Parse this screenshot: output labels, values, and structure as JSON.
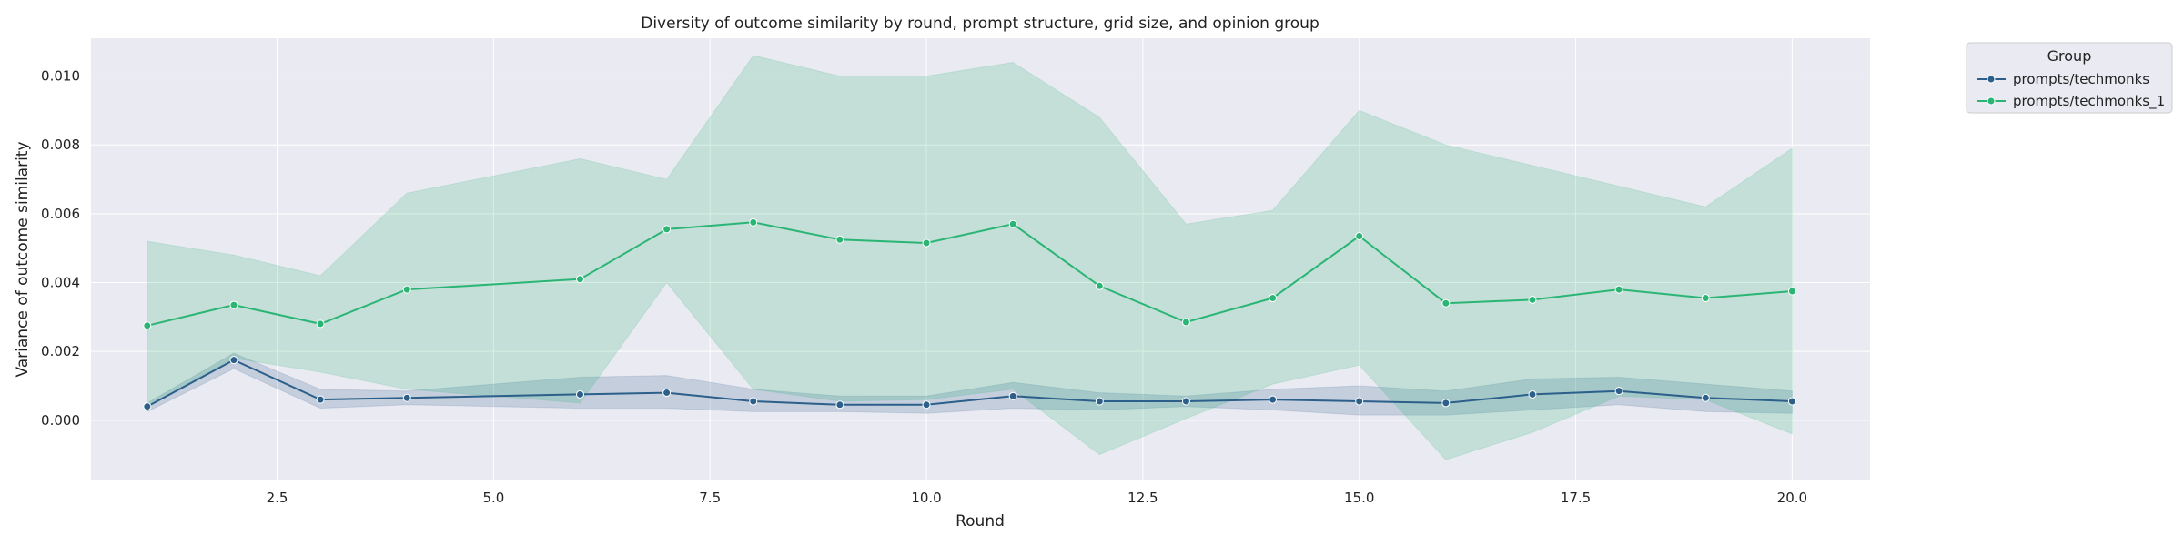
{
  "chart_data": {
    "type": "line",
    "title": "Diversity of outcome similarity by round, prompt structure, grid size, and opinion group",
    "xlabel": "Round",
    "ylabel": "Variance of outcome similarity",
    "xlim": [
      0.35,
      20.9
    ],
    "ylim": [
      -0.00175,
      0.0111
    ],
    "xticks": [
      2.5,
      5.0,
      7.5,
      10.0,
      12.5,
      15.0,
      17.5,
      20.0
    ],
    "xtick_labels": [
      "2.5",
      "5.0",
      "7.5",
      "10.0",
      "12.5",
      "15.0",
      "17.5",
      "20.0"
    ],
    "yticks": [
      0.0,
      0.002,
      0.004,
      0.006,
      0.008,
      0.01
    ],
    "ytick_labels": [
      "0.000",
      "0.002",
      "0.004",
      "0.006",
      "0.008",
      "0.010"
    ],
    "grid": true,
    "legend": {
      "title": "Group",
      "placement": "outside-top-right"
    },
    "colors": {
      "background": "#eaeaf2",
      "grid": "#ffffff"
    },
    "series": [
      {
        "name": "prompts/techmonks",
        "color": "#2c5f8a",
        "x": [
          1,
          2,
          3,
          4,
          6,
          7,
          8,
          9,
          10,
          11,
          12,
          13,
          14,
          15,
          16,
          17,
          18,
          19,
          20
        ],
        "y": [
          0.0004,
          0.00175,
          0.0006,
          0.00065,
          0.00075,
          0.0008,
          0.00055,
          0.00045,
          0.00045,
          0.0007,
          0.00055,
          0.00055,
          0.0006,
          0.00055,
          0.0005,
          0.00075,
          0.00085,
          0.00065,
          0.00055
        ],
        "ci_low": [
          0.00025,
          0.0015,
          0.00035,
          0.00045,
          0.00035,
          0.00035,
          0.00025,
          0.00025,
          0.0002,
          0.00035,
          0.0003,
          0.0004,
          0.0003,
          0.00015,
          0.00015,
          0.0003,
          0.00045,
          0.00025,
          0.0002
        ],
        "ci_high": [
          0.0005,
          0.00195,
          0.0009,
          0.00085,
          0.00125,
          0.0013,
          0.0009,
          0.0007,
          0.0007,
          0.0011,
          0.0008,
          0.0007,
          0.0009,
          0.001,
          0.00085,
          0.0012,
          0.00125,
          0.00105,
          0.00085
        ]
      },
      {
        "name": "prompts/techmonks_1",
        "color": "#2ab574",
        "x": [
          1,
          2,
          3,
          4,
          6,
          7,
          8,
          9,
          10,
          11,
          12,
          13,
          14,
          15,
          16,
          17,
          18,
          19,
          20
        ],
        "y": [
          0.00275,
          0.00335,
          0.0028,
          0.0038,
          0.0041,
          0.00555,
          0.00575,
          0.00525,
          0.00515,
          0.0057,
          0.0039,
          0.00285,
          0.00355,
          0.00535,
          0.0034,
          0.0035,
          0.0038,
          0.00355,
          0.00375
        ],
        "ci_low": [
          0.0004,
          0.0018,
          0.0014,
          0.0009,
          0.0005,
          0.004,
          0.0009,
          0.00055,
          0.0006,
          0.0009,
          -0.001,
          5e-05,
          0.00105,
          0.0016,
          -0.00115,
          -0.00035,
          0.0007,
          0.0006,
          -0.0004
        ],
        "ci_high": [
          0.0052,
          0.0048,
          0.0042,
          0.0066,
          0.0076,
          0.007,
          0.0106,
          0.01,
          0.01,
          0.0104,
          0.0088,
          0.0057,
          0.0061,
          0.009,
          0.008,
          0.0074,
          0.0068,
          0.0062,
          0.0079
        ]
      }
    ]
  }
}
